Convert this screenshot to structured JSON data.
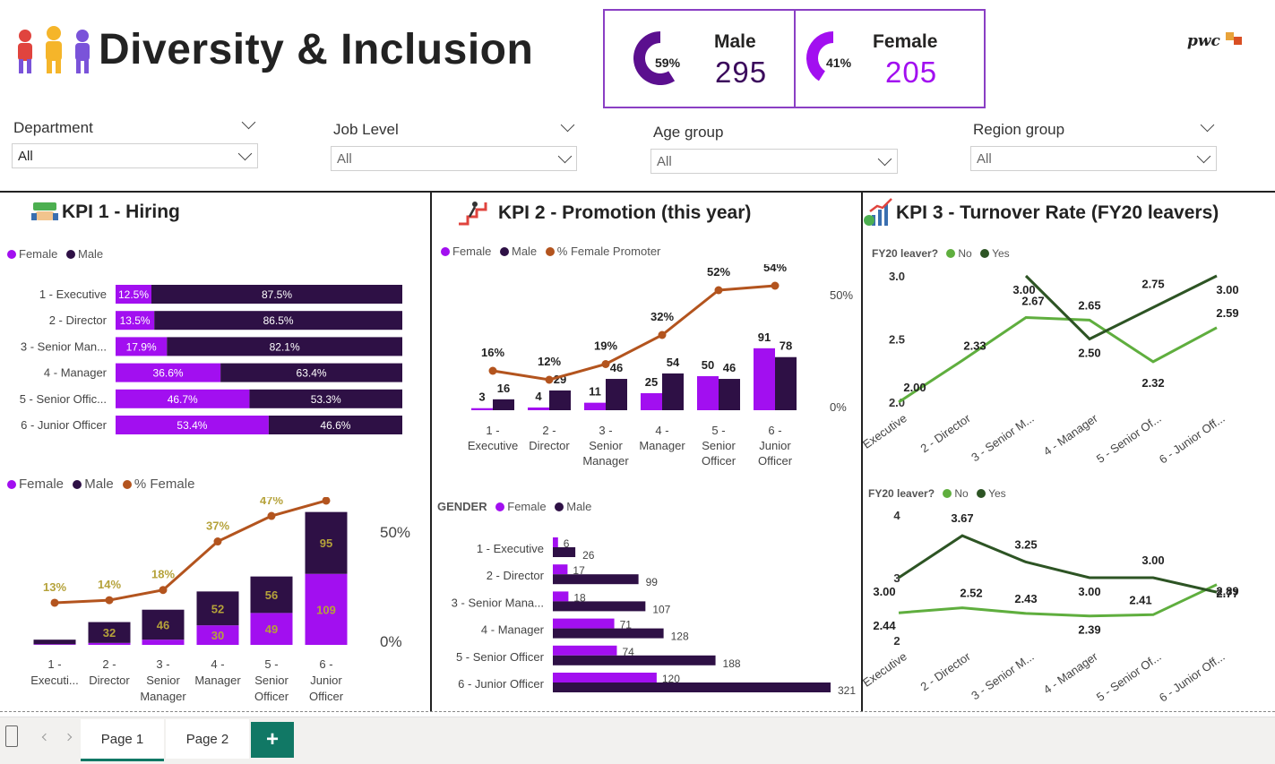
{
  "header": {
    "title": "Diversity & Inclusion",
    "logo": "pwc"
  },
  "cards": {
    "male": {
      "label": "Male",
      "value": "295",
      "pct": "59%",
      "fraction": 0.59,
      "color": "#5b0f8f"
    },
    "female": {
      "label": "Female",
      "value": "205",
      "pct": "41%",
      "fraction": 0.41,
      "color": "#a20ff0"
    }
  },
  "slicers": [
    {
      "title": "Department",
      "value": "All"
    },
    {
      "title": "Job Level",
      "value": "All"
    },
    {
      "title": "Age group",
      "value": "All"
    },
    {
      "title": "Region group",
      "value": "All"
    }
  ],
  "panels": {
    "kpi1_title": "KPI 1 - Hiring",
    "kpi2_title": "KPI 2 - Promotion (this year)",
    "kpi3_title": "KPI 3 - Turnover Rate (FY20 leavers)"
  },
  "colors": {
    "female": "#a20ff0",
    "male": "#2e1045",
    "pct_line": "#b3541e",
    "no": "#5fae3e",
    "yes": "#2d5424",
    "gold": "#b5a23a"
  },
  "legends": {
    "fm": [
      "Female",
      "Male"
    ],
    "fm_pct": [
      "Female",
      "Male",
      "% Female"
    ],
    "fm_promo": [
      "Female",
      "Male",
      "% Female Promoter"
    ],
    "gender_label": "GENDER",
    "fy20_label": "FY20 leaver?",
    "fy20_items": [
      "No",
      "Yes"
    ]
  },
  "chart_data": [
    {
      "id": "hiring_pct",
      "type": "bar",
      "stacked": "100%",
      "orientation": "horizontal",
      "categories": [
        "1 - Executive",
        "2 - Director",
        "3 - Senior Man...",
        "4 - Manager",
        "5 - Senior Offic...",
        "6 - Junior Officer"
      ],
      "series": [
        {
          "name": "Female",
          "values": [
            12.5,
            13.5,
            17.9,
            36.6,
            46.7,
            53.4
          ],
          "labels": [
            "12.5%",
            "13.5%",
            "17.9%",
            "36.6%",
            "46.7%",
            "53.4%"
          ]
        },
        {
          "name": "Male",
          "values": [
            87.5,
            86.5,
            82.1,
            63.4,
            53.3,
            46.6
          ],
          "labels": [
            "87.5%",
            "86.5%",
            "82.1%",
            "63.4%",
            "53.3%",
            "46.6%"
          ]
        }
      ]
    },
    {
      "id": "hiring_counts",
      "type": "bar",
      "stacked": true,
      "categories": [
        "1 - Executi...",
        "2 - Director",
        "3 - Senior Manager",
        "4 - Manager",
        "5 - Senior Officer",
        "6 - Junior Officer"
      ],
      "series": [
        {
          "name": "Female",
          "values": [
            1,
            3,
            8,
            30,
            49,
            109
          ],
          "labels": [
            "",
            "",
            "",
            "30",
            "49",
            "109"
          ]
        },
        {
          "name": "Male",
          "values": [
            7,
            32,
            46,
            52,
            56,
            95
          ],
          "labels": [
            "",
            "32",
            "46",
            "52",
            "56",
            "95"
          ]
        },
        {
          "name": "% Female",
          "values": [
            13,
            14,
            18,
            37,
            47,
            53
          ],
          "labels": [
            "13%",
            "14%",
            "18%",
            "37%",
            "47%",
            "53%"
          ]
        }
      ],
      "ylim": [
        0,
        209
      ],
      "y2_ticks": [
        "50%",
        "0%"
      ]
    },
    {
      "id": "promotion",
      "type": "bar",
      "categories": [
        "1 - Executive",
        "2 - Director",
        "3 - Senior Manager",
        "4 - Manager",
        "5 - Senior Officer",
        "6 - Junior Officer"
      ],
      "series": [
        {
          "name": "Female",
          "values": [
            3,
            4,
            11,
            25,
            50,
            91
          ]
        },
        {
          "name": "Male",
          "values": [
            16,
            29,
            46,
            54,
            46,
            78
          ]
        },
        {
          "name": "% Female Promoter",
          "values": [
            16,
            12,
            19,
            32,
            52,
            54
          ],
          "labels": [
            "16%",
            "12%",
            "19%",
            "32%",
            "52%",
            "54%"
          ]
        }
      ],
      "ylim": [
        0,
        100
      ],
      "y2_ticks": [
        "50%",
        "0%"
      ]
    },
    {
      "id": "gender_headcount",
      "type": "bar",
      "orientation": "horizontal",
      "categories": [
        "1 - Executive",
        "2 - Director",
        "3 - Senior Mana...",
        "4 - Manager",
        "5 - Senior Officer",
        "6 - Junior Officer"
      ],
      "series": [
        {
          "name": "Female",
          "values": [
            6,
            17,
            18,
            71,
            74,
            120
          ]
        },
        {
          "name": "Male",
          "values": [
            26,
            99,
            107,
            128,
            188,
            321
          ]
        }
      ]
    },
    {
      "id": "turnover_1",
      "type": "line",
      "categories": [
        "1 - Executive",
        "2 - Director",
        "3 - Senior M...",
        "4 - Manager",
        "5 - Senior Of...",
        "6 - Junior Off..."
      ],
      "series": [
        {
          "name": "No",
          "values": [
            2.0,
            2.33,
            2.67,
            2.65,
            2.32,
            2.59
          ],
          "labels": [
            "2.00",
            "2.33",
            "2.67",
            "2.65",
            "2.32",
            "2.59"
          ]
        },
        {
          "name": "Yes",
          "values": [
            null,
            null,
            3.0,
            2.5,
            2.75,
            3.0
          ],
          "labels": [
            "",
            "",
            "3.00",
            "2.50",
            "2.75",
            "3.00"
          ]
        }
      ],
      "y_ticks": [
        "3.0",
        "2.5",
        "2.0"
      ],
      "ylim": [
        2.0,
        3.0
      ]
    },
    {
      "id": "turnover_2",
      "type": "line",
      "categories": [
        "1 - Executive",
        "2 - Director",
        "3 - Senior M...",
        "4 - Manager",
        "5 - Senior Of...",
        "6 - Junior Off..."
      ],
      "series": [
        {
          "name": "No",
          "values": [
            2.44,
            2.52,
            2.43,
            2.39,
            2.41,
            2.89
          ],
          "labels": [
            "2.44",
            "2.52",
            "2.43",
            "2.39",
            "2.41",
            "2.89"
          ]
        },
        {
          "name": "Yes",
          "values": [
            3.0,
            3.67,
            3.25,
            3.0,
            3.0,
            2.77
          ],
          "labels": [
            "3.00",
            "3.67",
            "3.25",
            "3.00",
            "3.00",
            "2.77"
          ]
        }
      ],
      "y_ticks": [
        "4",
        "3",
        "2"
      ],
      "ylim": [
        2,
        4
      ]
    }
  ],
  "tabs": [
    {
      "label": "Page 1",
      "active": true
    },
    {
      "label": "Page 2",
      "active": false
    }
  ],
  "add_tab_label": "+"
}
